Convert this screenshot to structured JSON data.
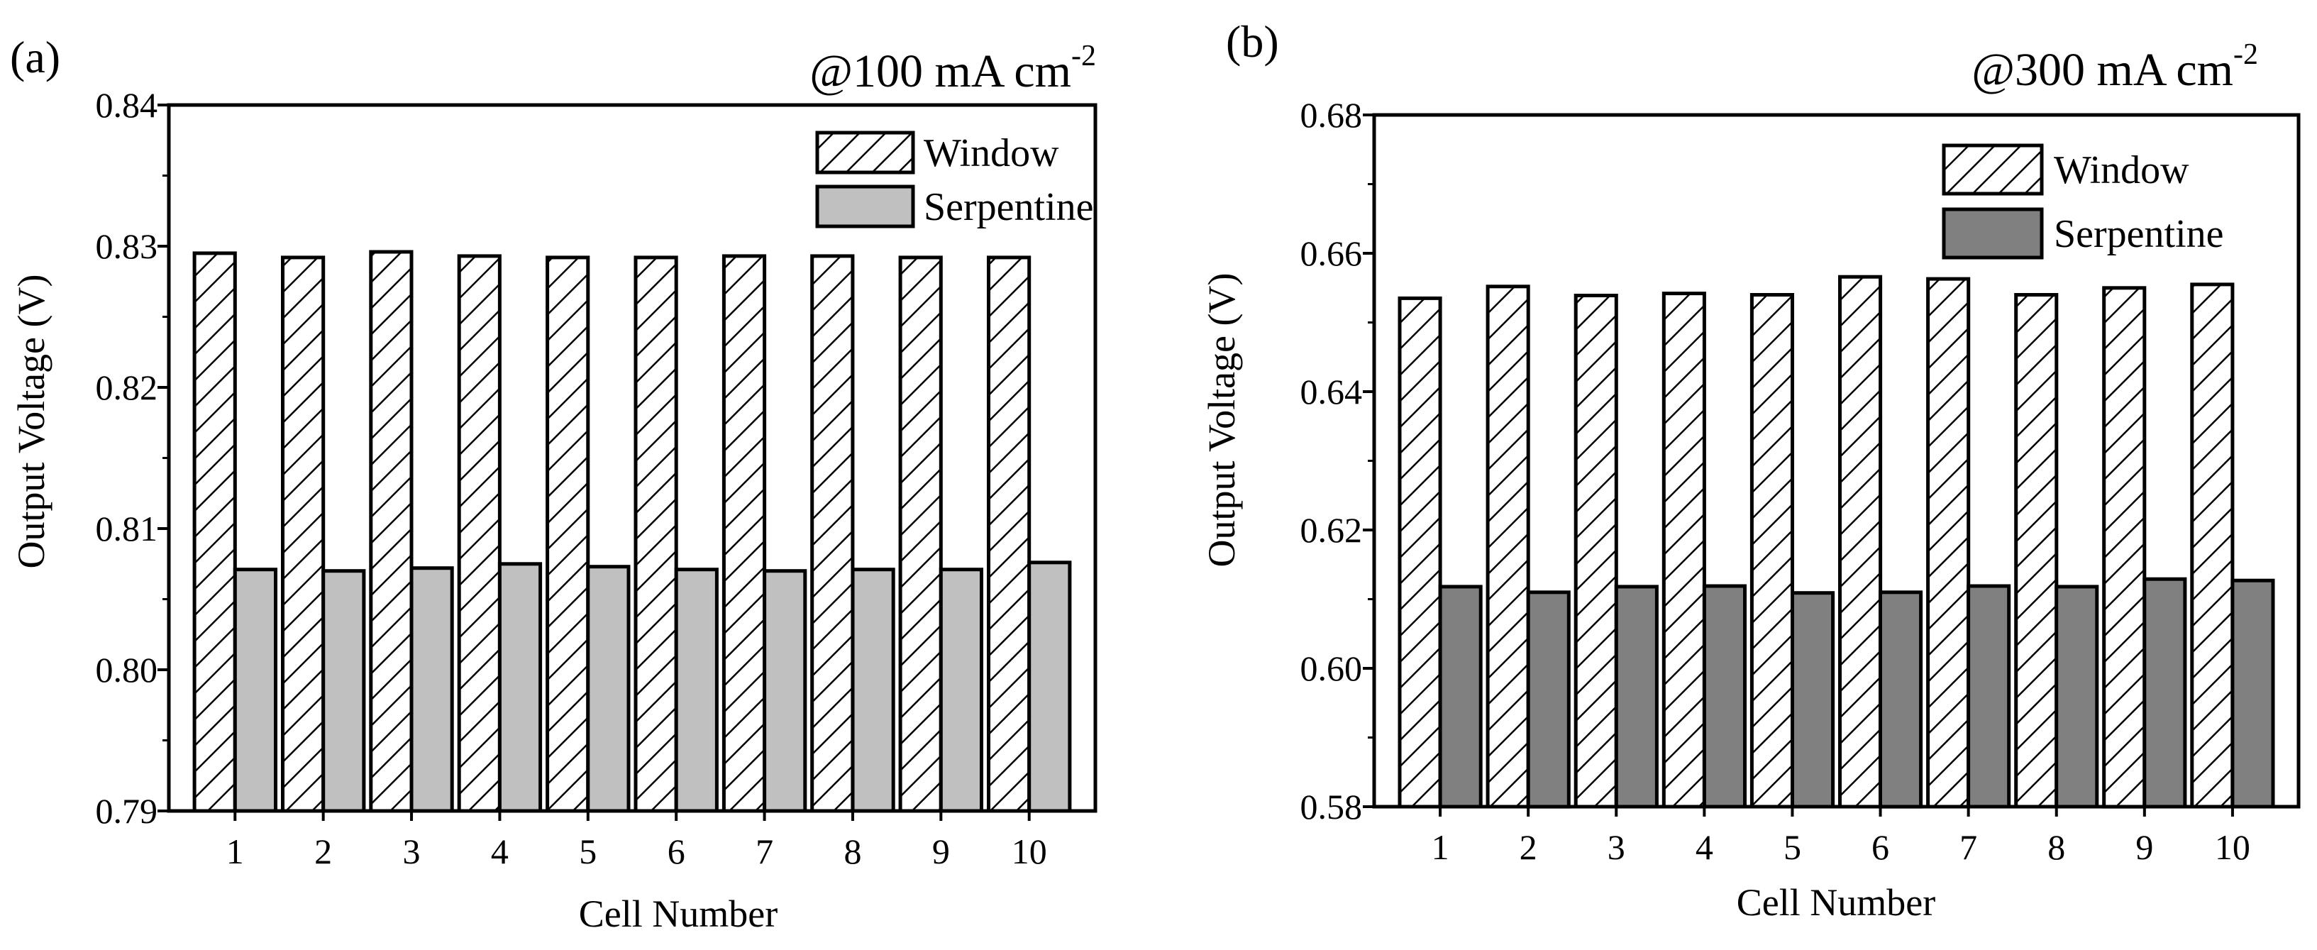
{
  "chart_data": [
    {
      "type": "bar",
      "panel_label": "(a)",
      "annotation": {
        "prefix": "@100 mA cm",
        "sup": "-2"
      },
      "xlabel": "Cell Number",
      "ylabel": "Output Voltage (V)",
      "ylim": [
        0.79,
        0.84
      ],
      "yticks": [
        "0.79",
        "0.80",
        "0.81",
        "0.82",
        "0.83",
        "0.84"
      ],
      "categories": [
        "1",
        "2",
        "3",
        "4",
        "5",
        "6",
        "7",
        "8",
        "9",
        "10"
      ],
      "legend_position": "top-right",
      "series": [
        {
          "name": "Window",
          "pattern": "hatch",
          "color": "#ffffff",
          "values": [
            0.8295,
            0.8292,
            0.8296,
            0.8293,
            0.8292,
            0.8292,
            0.8293,
            0.8293,
            0.8292,
            0.8292
          ]
        },
        {
          "name": "Serpentine",
          "pattern": "solid",
          "color": "#c0c0c0",
          "values": [
            0.8071,
            0.807,
            0.8072,
            0.8075,
            0.8073,
            0.8071,
            0.807,
            0.8071,
            0.8071,
            0.8076
          ]
        }
      ]
    },
    {
      "type": "bar",
      "panel_label": "(b)",
      "annotation": {
        "prefix": "@300 mA cm",
        "sup": "-2"
      },
      "xlabel": "Cell Number",
      "ylabel": "Output Voltage (V)",
      "ylim": [
        0.58,
        0.68
      ],
      "yticks": [
        "0.58",
        "0.60",
        "0.62",
        "0.64",
        "0.66",
        "0.68"
      ],
      "categories": [
        "1",
        "2",
        "3",
        "4",
        "5",
        "6",
        "7",
        "8",
        "9",
        "10"
      ],
      "legend_position": "top-right",
      "series": [
        {
          "name": "Window",
          "pattern": "hatch",
          "color": "#ffffff",
          "values": [
            0.6535,
            0.6552,
            0.6539,
            0.6542,
            0.654,
            0.6566,
            0.6563,
            0.654,
            0.655,
            0.6555
          ]
        },
        {
          "name": "Serpentine",
          "pattern": "solid",
          "color": "#808080",
          "values": [
            0.6118,
            0.611,
            0.6118,
            0.6119,
            0.6109,
            0.611,
            0.6119,
            0.6118,
            0.6129,
            0.6127
          ]
        }
      ]
    }
  ]
}
